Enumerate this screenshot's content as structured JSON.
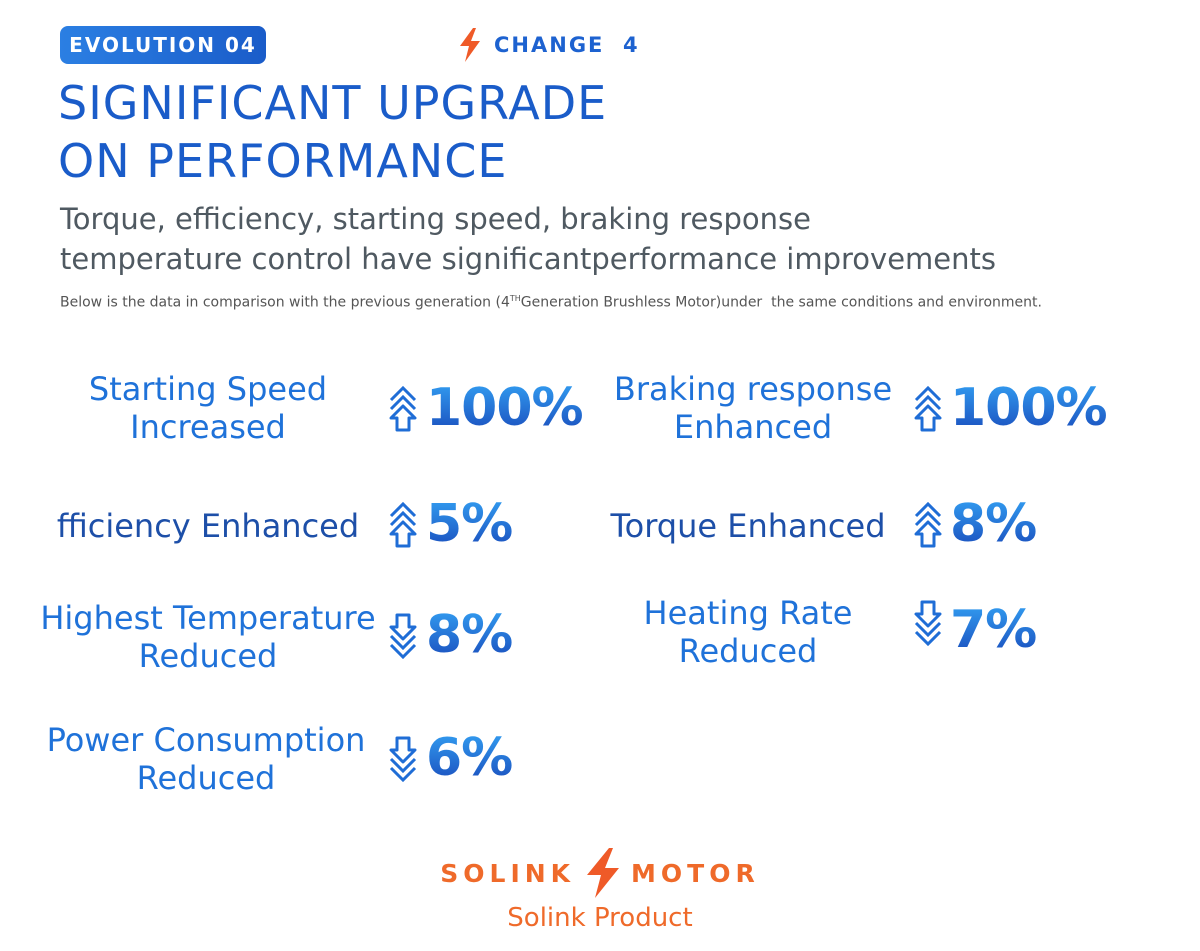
{
  "header": {
    "badge": "EVOLUTION 04",
    "change_label": "CHANGE  4",
    "title_line1": "SIGNIFICANT UPGRADE",
    "title_line2": "ON PERFORMANCE",
    "subtitle_line1": "Torque, efficiency, starting speed, braking response",
    "subtitle_line2": "temperature control have significantperformance improvements",
    "note_before": "Below is the data in comparison with the previous generation (4",
    "note_sup": "TH",
    "note_after": "Generation Brushless Motor)under  the same conditions and environment."
  },
  "metrics": [
    {
      "line1": "Starting Speed",
      "line2": "Increased",
      "direction": "up",
      "value": "100%"
    },
    {
      "line1": "Braking response",
      "line2": "Enhanced",
      "direction": "up",
      "value": "100%"
    },
    {
      "line1": "fficiency Enhanced",
      "direction": "up",
      "value": "5%"
    },
    {
      "line1": "Torque Enhanced",
      "direction": "up",
      "value": "8%"
    },
    {
      "line1": "Highest Temperature",
      "line2": "Reduced",
      "direction": "down",
      "value": "8%"
    },
    {
      "line1": "Heating Rate",
      "line2": "Reduced",
      "direction": "down",
      "value": "7%"
    },
    {
      "line1": "Power Consumption",
      "line2": "Reduced",
      "direction": "down",
      "value": "6%"
    }
  ],
  "footer": {
    "brand_left": "SOLINK",
    "brand_right": "MOTOR",
    "tagline": "Solink Product"
  },
  "colors": {
    "primary_blue": "#1a5cc9",
    "label_blue": "#1f72d9",
    "brand_orange": "#ef6a2a"
  },
  "icons": [
    "lightning-bolt-icon",
    "double-arrow-up-icon",
    "double-arrow-down-icon"
  ]
}
